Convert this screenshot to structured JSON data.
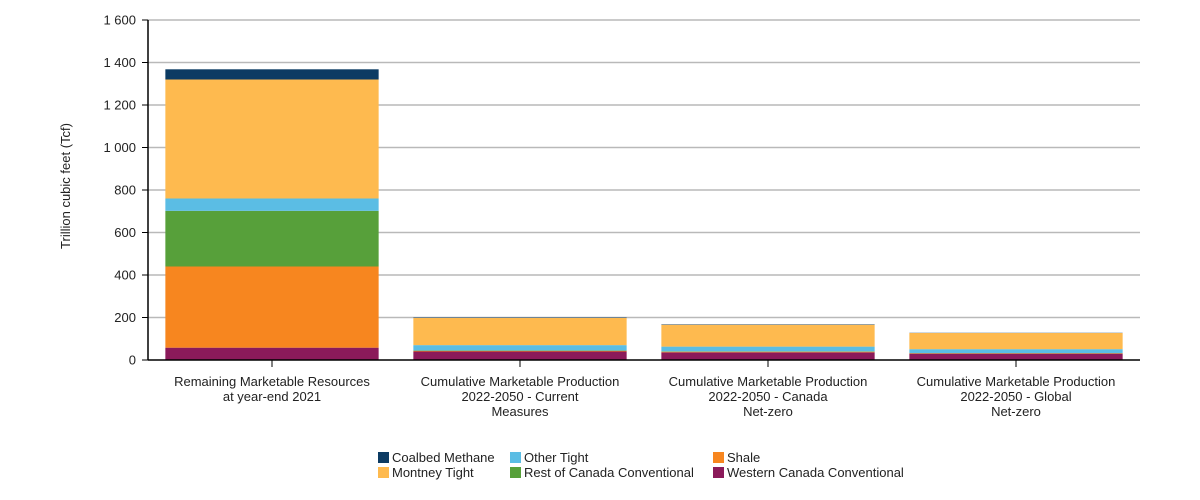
{
  "chart_data": {
    "type": "bar",
    "stacked": true,
    "ylabel": "Trillion cubic feet (Tcf)",
    "ylim": [
      0,
      1600
    ],
    "yticks": [
      0,
      200,
      400,
      600,
      800,
      1000,
      1200,
      1400,
      1600
    ],
    "ytick_labels": [
      "0",
      "200",
      "400",
      "600",
      "800",
      "1 000",
      "1 200",
      "1 400",
      "1 600"
    ],
    "grid": true,
    "legend_position": "bottom",
    "categories": [
      [
        "Remaining Marketable Resources",
        "at year-end 2021"
      ],
      [
        "Cumulative Marketable Production",
        "2022-2050 - Current",
        "Measures"
      ],
      [
        "Cumulative Marketable Production",
        "2022-2050 - Canada",
        "Net-zero"
      ],
      [
        "Cumulative Marketable Production",
        "2022-2050 - Global",
        "Net-zero"
      ]
    ],
    "series": [
      {
        "name": "Western Canada Conventional",
        "color": "#8b1a5a",
        "values": [
          58,
          40,
          36,
          30
        ]
      },
      {
        "name": "Shale",
        "color": "#f7861f",
        "values": [
          382,
          3,
          3,
          2
        ]
      },
      {
        "name": "Rest of Canada Conventional",
        "color": "#57a03a",
        "values": [
          262,
          2,
          2,
          1
        ]
      },
      {
        "name": "Other Tight",
        "color": "#5bbde4",
        "values": [
          58,
          25,
          22,
          18
        ]
      },
      {
        "name": "Montney Tight",
        "color": "#feba4f",
        "values": [
          560,
          128,
          103,
          76
        ]
      },
      {
        "name": "Coalbed Methane",
        "color": "#0c3b63",
        "values": [
          48,
          2,
          2,
          1
        ]
      }
    ],
    "legend_order": [
      "Coalbed Methane",
      "Other Tight",
      "Shale",
      "Montney Tight",
      "Rest of Canada Conventional",
      "Western Canada Conventional"
    ]
  }
}
